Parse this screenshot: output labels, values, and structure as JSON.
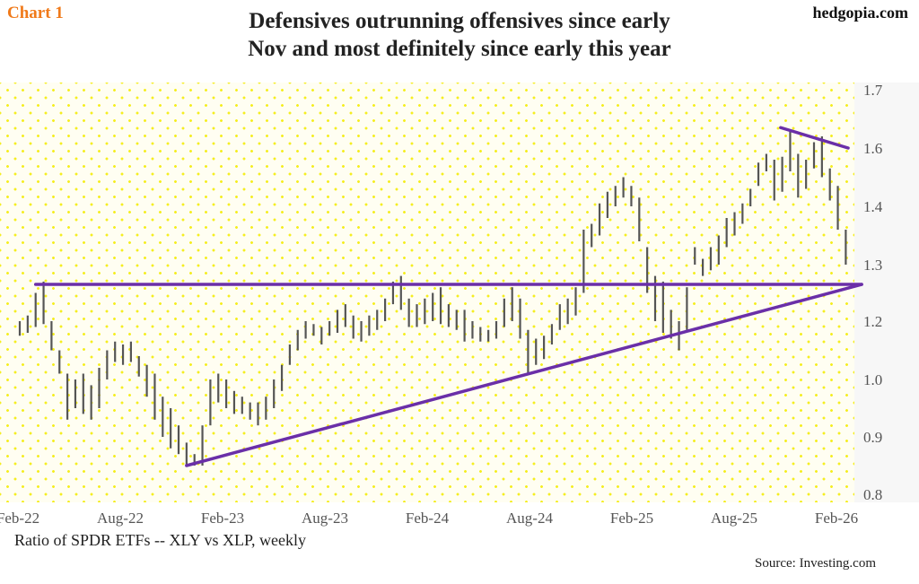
{
  "header": {
    "badge": "Chart 1",
    "site": "hedgopia.com",
    "title_line1": "Defensives outrunning offensives since early",
    "title_line2": "Nov and most definitely since early this year"
  },
  "footer": {
    "caption": "Ratio of SPDR ETFs -- XLY vs XLP, weekly",
    "source": "Source: Investing.com"
  },
  "colors": {
    "bars": "#555555",
    "trendlines": "#6a2fa8",
    "badge": "#f07a1a"
  },
  "chart_data": {
    "type": "bar",
    "subtype": "high-low bars (weekly, sampled ~biweekly)",
    "title": "Defensives outrunning offensives since early Nov and most definitely since early this year",
    "xlabel": "",
    "ylabel": "Ratio of SPDR ETFs -- XLY vs XLP, weekly",
    "ylim": [
      0.8,
      1.7
    ],
    "y_ticks": [
      {
        "label": "1.7",
        "value": 1.7
      },
      {
        "label": "1.6",
        "value": 1.6
      },
      {
        "label": "1.4",
        "value": 1.4
      },
      {
        "label": "1.3",
        "value": 1.3
      },
      {
        "label": "1.2",
        "value": 1.2
      },
      {
        "label": "1.0",
        "value": 1.0
      },
      {
        "label": "0.9",
        "value": 0.9
      },
      {
        "label": "0.8",
        "value": 0.8
      }
    ],
    "x_ticks": [
      {
        "label": "Feb-22",
        "index": 0
      },
      {
        "label": "Aug-22",
        "index": 12.9
      },
      {
        "label": "Feb-23",
        "index": 25.8
      },
      {
        "label": "Aug-23",
        "index": 38.7
      },
      {
        "label": "Feb-24",
        "index": 51.6
      },
      {
        "label": "Aug-24",
        "index": 64.5
      },
      {
        "label": "Feb-25",
        "index": 77.4
      },
      {
        "label": "Aug-25",
        "index": 90.3
      },
      {
        "label": "Feb-26",
        "index": 103.2
      }
    ],
    "grid": false,
    "highs": [
      1.2,
      1.21,
      1.25,
      1.27,
      1.2,
      1.1,
      1.02,
      1.0,
      1.02,
      0.99,
      1.04,
      1.1,
      1.13,
      1.12,
      1.13,
      1.08,
      1.05,
      1.02,
      0.97,
      0.95,
      0.92,
      0.89,
      0.87,
      0.92,
      1.0,
      1.02,
      1.0,
      0.98,
      0.97,
      0.96,
      0.96,
      0.97,
      1.0,
      1.05,
      1.12,
      1.17,
      1.2,
      1.19,
      1.18,
      1.2,
      1.22,
      1.23,
      1.21,
      1.2,
      1.21,
      1.22,
      1.24,
      1.27,
      1.28,
      1.24,
      1.23,
      1.24,
      1.25,
      1.26,
      1.23,
      1.22,
      1.22,
      1.2,
      1.18,
      1.17,
      1.2,
      1.24,
      1.26,
      1.24,
      1.17,
      1.14,
      1.15,
      1.19,
      1.23,
      1.24,
      1.26,
      1.36,
      1.37,
      1.41,
      1.45,
      1.47,
      1.5,
      1.47,
      1.43,
      1.33,
      1.28,
      1.27,
      1.22,
      1.2,
      1.26,
      1.33,
      1.31,
      1.33,
      1.35,
      1.38,
      1.39,
      1.41,
      1.46,
      1.55,
      1.58,
      1.56,
      1.57,
      1.63,
      1.58,
      1.56,
      1.61,
      1.62,
      1.53,
      1.47,
      1.36
    ],
    "lows": [
      1.15,
      1.16,
      1.18,
      1.19,
      1.1,
      1.02,
      0.93,
      0.95,
      0.94,
      0.93,
      0.95,
      1.0,
      1.06,
      1.05,
      1.06,
      1.01,
      0.97,
      0.93,
      0.9,
      0.88,
      0.87,
      0.85,
      0.85,
      0.85,
      0.92,
      0.96,
      0.95,
      0.94,
      0.94,
      0.93,
      0.92,
      0.93,
      0.95,
      0.98,
      1.05,
      1.1,
      1.14,
      1.15,
      1.12,
      1.15,
      1.16,
      1.18,
      1.14,
      1.13,
      1.15,
      1.17,
      1.2,
      1.23,
      1.22,
      1.18,
      1.18,
      1.19,
      1.2,
      1.19,
      1.18,
      1.17,
      1.13,
      1.14,
      1.13,
      1.13,
      1.14,
      1.18,
      1.2,
      1.14,
      1.02,
      1.05,
      1.07,
      1.12,
      1.17,
      1.19,
      1.21,
      1.25,
      1.33,
      1.35,
      1.38,
      1.4,
      1.43,
      1.4,
      1.34,
      1.25,
      1.2,
      1.16,
      1.14,
      1.1,
      1.17,
      1.3,
      1.28,
      1.29,
      1.3,
      1.33,
      1.35,
      1.37,
      1.4,
      1.47,
      1.52,
      1.42,
      1.45,
      1.52,
      1.43,
      1.46,
      1.53,
      1.5,
      1.42,
      1.36,
      1.3
    ],
    "trendlines": [
      {
        "name": "horizontal resistance",
        "from": {
          "index": 2,
          "value": 1.265
        },
        "to": {
          "index": 106,
          "value": 1.265
        }
      },
      {
        "name": "rising support",
        "from": {
          "index": 21,
          "value": 0.85
        },
        "to": {
          "index": 106,
          "value": 1.265
        }
      },
      {
        "name": "falling resistance",
        "from": {
          "index": 95.8,
          "value": 1.635
        },
        "to": {
          "index": 104.3,
          "value": 1.6
        }
      }
    ]
  }
}
